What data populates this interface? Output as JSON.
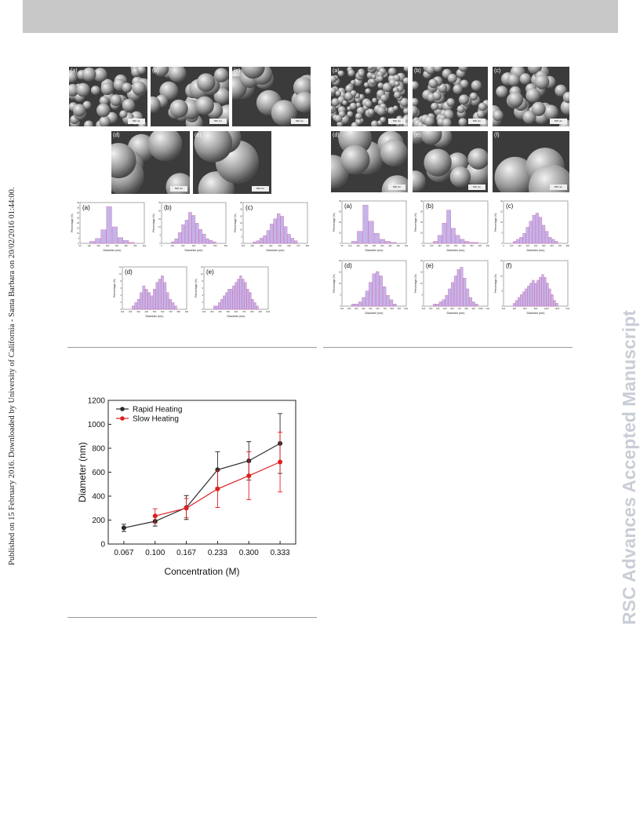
{
  "side_note": "Published on 15 February 2016. Downloaded by University of California - Santa Barbara on 20/02/2016 01:44:00.",
  "watermark": "RSC Advances Accepted Manuscript",
  "figure_left": {
    "sem_panels": [
      {
        "label": "(a)",
        "scale": "500 nm"
      },
      {
        "label": "(b)",
        "scale": "500 nm"
      },
      {
        "label": "(c)",
        "scale": "500 nm"
      },
      {
        "label": "(d)",
        "scale": "500 nm"
      },
      {
        "label": "(e)",
        "scale": "500 nm"
      }
    ],
    "histograms": [
      {
        "label": "(a)",
        "xlabel": "Diameter (nm)",
        "ylabel": "Percentage (%)",
        "ymax": 40,
        "yticks": [
          "0",
          "5",
          "10",
          "15",
          "20",
          "25",
          "30",
          "35",
          "40"
        ],
        "xticks": [
          "50",
          "100",
          "150",
          "200",
          "250",
          "300",
          "350",
          "400"
        ],
        "bars": [
          2,
          5,
          14,
          38,
          17,
          6,
          3,
          1
        ]
      },
      {
        "label": "(b)",
        "xlabel": "Diameter (nm)",
        "ylabel": "Percentage (%)",
        "ymax": 25,
        "yticks": [
          "0",
          "5",
          "10",
          "15",
          "20",
          "25"
        ],
        "xticks": [
          "0",
          "100",
          "200",
          "300",
          "400",
          "500",
          "600"
        ],
        "bars": [
          1,
          3,
          7,
          12,
          15,
          20,
          18,
          13,
          9,
          6,
          3,
          2,
          1
        ]
      },
      {
        "label": "(c)",
        "xlabel": "Diameter (nm)",
        "ylabel": "Percentage (%)",
        "ymax": 30,
        "yticks": [
          "0",
          "5",
          "10",
          "15",
          "20",
          "25",
          "30"
        ],
        "xticks": [
          "100",
          "200",
          "300",
          "400",
          "500",
          "600",
          "700",
          "800"
        ],
        "bars": [
          1,
          2,
          4,
          6,
          10,
          15,
          19,
          23,
          21,
          13,
          7,
          4,
          2
        ]
      },
      {
        "label": "(d)",
        "xlabel": "Diameter (nm)",
        "ylabel": "Percentage (%)",
        "ymax": 12,
        "yticks": [
          "0",
          "2",
          "4",
          "6",
          "8",
          "10",
          "12"
        ],
        "xticks": [
          "100",
          "200",
          "300",
          "400",
          "500",
          "600",
          "700",
          "800",
          "900"
        ],
        "bars": [
          1,
          2,
          3,
          5,
          7,
          6,
          5,
          4,
          6,
          8,
          9,
          10,
          8,
          5,
          3,
          2,
          1
        ]
      },
      {
        "label": "(e)",
        "xlabel": "Diameter (nm)",
        "ylabel": "Percentage (%)",
        "ymax": 12,
        "yticks": [
          "0",
          "2",
          "4",
          "6",
          "8",
          "10",
          "12"
        ],
        "xticks": [
          "200",
          "300",
          "400",
          "500",
          "600",
          "700",
          "800",
          "900",
          "1000"
        ],
        "bars": [
          1,
          1,
          2,
          3,
          4,
          5,
          6,
          6,
          7,
          8,
          9,
          10,
          9,
          8,
          6,
          5,
          3,
          2,
          1
        ]
      }
    ]
  },
  "figure_right": {
    "sem_panels": [
      {
        "label": "(a)",
        "scale": "500 nm"
      },
      {
        "label": "(b)",
        "scale": "500 nm"
      },
      {
        "label": "(c)",
        "scale": "500 nm"
      },
      {
        "label": "(d)",
        "scale": "500 nm"
      },
      {
        "label": "(e)",
        "scale": "500 nm"
      },
      {
        "label": "(f)",
        "scale": "500 nm"
      }
    ],
    "histograms": [
      {
        "label": "(a)",
        "xlabel": "Diameter (nm)",
        "ylabel": "Percentage (%)",
        "ymax": 40,
        "yticks": [
          "0",
          "10",
          "20",
          "30",
          "40"
        ],
        "xticks": [
          "50",
          "100",
          "150",
          "200",
          "250",
          "300",
          "350",
          "400",
          "450"
        ],
        "bars": [
          2,
          12,
          38,
          22,
          10,
          4,
          2,
          1
        ]
      },
      {
        "label": "(b)",
        "xlabel": "Diameter (nm)",
        "ylabel": "Percentage (%)",
        "ymax": 40,
        "yticks": [
          "0",
          "10",
          "20",
          "30",
          "40"
        ],
        "xticks": [
          "50",
          "100",
          "150",
          "200",
          "250",
          "300",
          "350",
          "400",
          "450"
        ],
        "bars": [
          2,
          8,
          20,
          33,
          15,
          8,
          4,
          2,
          1,
          1
        ]
      },
      {
        "label": "(c)",
        "xlabel": "Diameter (nm)",
        "ylabel": "Percentage (%)",
        "ymax": 20,
        "yticks": [
          "0",
          "5",
          "10",
          "15",
          "20"
        ],
        "xticks": [
          "0",
          "100",
          "200",
          "300",
          "400",
          "500",
          "600",
          "700",
          "800"
        ],
        "bars": [
          1,
          2,
          3,
          5,
          8,
          11,
          14,
          15,
          13,
          9,
          6,
          3,
          2,
          1
        ]
      },
      {
        "label": "(d)",
        "xlabel": "Diameter (nm)",
        "ylabel": "Percentage (%)",
        "ymax": 20,
        "yticks": [
          "0",
          "5",
          "10",
          "15",
          "20"
        ],
        "xticks": [
          "100",
          "200",
          "300",
          "400",
          "500",
          "600",
          "700",
          "800",
          "900",
          "1000"
        ],
        "bars": [
          1,
          1,
          2,
          4,
          7,
          11,
          15,
          16,
          14,
          9,
          5,
          3,
          1
        ]
      },
      {
        "label": "(e)",
        "xlabel": "Diameter (nm)",
        "ylabel": "Percentage (%)",
        "ymax": 20,
        "yticks": [
          "0",
          "5",
          "10",
          "15",
          "20"
        ],
        "xticks": [
          "200",
          "300",
          "400",
          "500",
          "600",
          "700",
          "800",
          "900",
          "1000",
          "1100"
        ],
        "bars": [
          1,
          1,
          2,
          3,
          5,
          8,
          11,
          14,
          17,
          18,
          13,
          8,
          4,
          2,
          1
        ]
      },
      {
        "label": "(f)",
        "xlabel": "Diameter (nm)",
        "ylabel": "Percentage (%)",
        "ymax": 15,
        "yticks": [
          "0",
          "5",
          "10",
          "15"
        ],
        "xticks": [
          "200",
          "400",
          "600",
          "800",
          "1000",
          "1200",
          "1400"
        ],
        "bars": [
          1,
          2,
          3,
          4,
          5,
          6,
          7,
          8,
          9,
          8,
          9,
          10,
          11,
          10,
          8,
          6,
          4,
          2,
          1
        ]
      }
    ]
  },
  "chart_data": {
    "type": "line",
    "xlabel": "Concentration (M)",
    "ylabel": "Diameter (nm)",
    "categories": [
      "0.067",
      "0.100",
      "0.167",
      "0.233",
      "0.300",
      "0.333"
    ],
    "ylim": [
      0,
      1200
    ],
    "yticks": [
      "0",
      "200",
      "400",
      "600",
      "800",
      "1000",
      "1200"
    ],
    "legend_position": "top-left",
    "grid": false,
    "series": [
      {
        "name": "Rapid Heating",
        "color": "#2b2b2b",
        "values": [
          135,
          190,
          305,
          620,
          695,
          840
        ],
        "errors": [
          30,
          40,
          100,
          150,
          160,
          250
        ]
      },
      {
        "name": "Slow Heating",
        "color": "#e02020",
        "values": [
          null,
          235,
          300,
          460,
          570,
          685
        ],
        "errors": [
          null,
          60,
          80,
          155,
          200,
          250
        ]
      }
    ]
  }
}
